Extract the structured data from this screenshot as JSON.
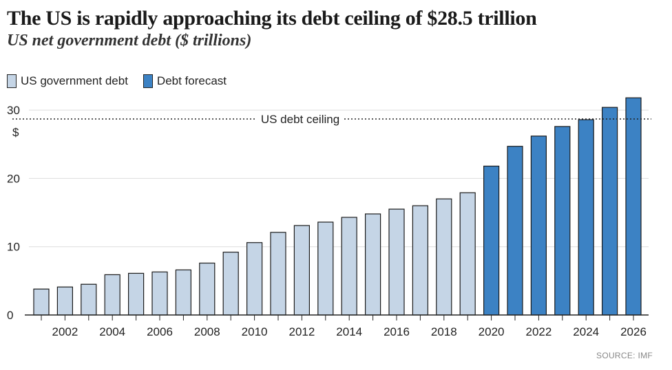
{
  "header": {
    "title": "The US is rapidly approaching its debt ceiling of $28.5 trillion",
    "subtitle": "US net government debt ($ trillions)"
  },
  "legend": {
    "items": [
      {
        "label": "US government debt",
        "color": "#c5d5e6"
      },
      {
        "label": "Debt forecast",
        "color": "#3c82c4"
      }
    ]
  },
  "footer": {
    "source": "SOURCE: IMF"
  },
  "chart_data": {
    "type": "bar",
    "title": "The US is rapidly approaching its debt ceiling of $28.5 trillion",
    "subtitle": "US net government debt ($ trillions)",
    "xlabel": "",
    "ylabel": "$",
    "ylim": [
      0,
      32
    ],
    "yticks": [
      0,
      10,
      20,
      30
    ],
    "grid": true,
    "categories": [
      "2001",
      "2002",
      "2003",
      "2004",
      "2005",
      "2006",
      "2007",
      "2008",
      "2009",
      "2010",
      "2011",
      "2012",
      "2013",
      "2014",
      "2015",
      "2016",
      "2017",
      "2018",
      "2019",
      "2020",
      "2021",
      "2022",
      "2023",
      "2024",
      "2025",
      "2026"
    ],
    "xtick_labels": [
      "2002",
      "2004",
      "2006",
      "2008",
      "2010",
      "2012",
      "2014",
      "2016",
      "2018",
      "2020",
      "2022",
      "2024",
      "2026"
    ],
    "series": [
      {
        "name": "US government debt",
        "color": "#c5d5e6",
        "values": [
          3.8,
          4.1,
          4.5,
          5.9,
          6.1,
          6.3,
          6.6,
          7.6,
          9.2,
          10.6,
          12.1,
          13.1,
          13.6,
          14.3,
          14.8,
          15.5,
          16.0,
          17.0,
          17.9,
          null,
          null,
          null,
          null,
          null,
          null,
          null
        ]
      },
      {
        "name": "Debt forecast",
        "color": "#3c82c4",
        "values": [
          null,
          null,
          null,
          null,
          null,
          null,
          null,
          null,
          null,
          null,
          null,
          null,
          null,
          null,
          null,
          null,
          null,
          null,
          null,
          21.8,
          24.7,
          26.2,
          27.6,
          28.6,
          30.4,
          31.8
        ]
      }
    ],
    "reference_line": {
      "label": "US debt ceiling",
      "value": 28.5
    }
  }
}
